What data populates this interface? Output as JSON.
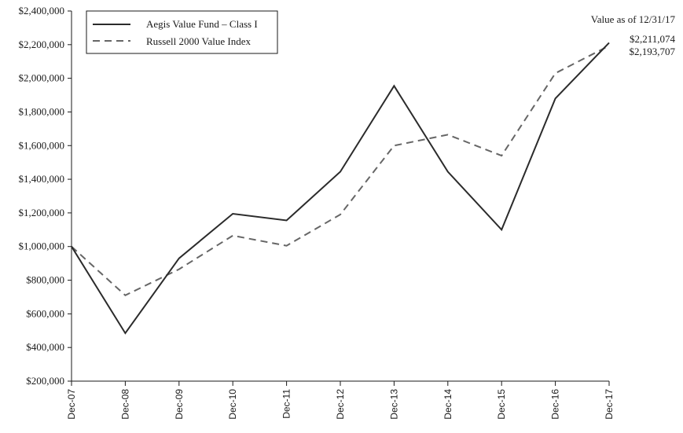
{
  "chart_data": {
    "type": "line",
    "x": [
      "Dec-07",
      "Dec-08",
      "Dec-09",
      "Dec-10",
      "Dec-11",
      "Dec-12",
      "Dec-13",
      "Dec-14",
      "Dec-15",
      "Dec-16",
      "Dec-17"
    ],
    "series": [
      {
        "name": "Aegis Value Fund – Class I",
        "color": "#2b2b2b",
        "dash": "solid",
        "values": [
          1000000,
          485000,
          930000,
          1195000,
          1155000,
          1445000,
          1955000,
          1445000,
          1100000,
          1880000,
          2211074
        ]
      },
      {
        "name": "Russell 2000 Value Index",
        "color": "#666666",
        "dash": "dashed",
        "values": [
          1000000,
          710000,
          865000,
          1065000,
          1005000,
          1190000,
          1600000,
          1665000,
          1540000,
          2030000,
          2193707
        ]
      }
    ],
    "yticks": [
      "$200,000",
      "$400,000",
      "$600,000",
      "$800,000",
      "$1,000,000",
      "$1,200,000",
      "$1,400,000",
      "$1,600,000",
      "$1,800,000",
      "$2,000,000",
      "$2,200,000",
      "$2,400,000"
    ],
    "ylim": [
      200000,
      2400000
    ],
    "title": "",
    "xlabel": "",
    "ylabel": "",
    "grid": false,
    "legend_position": "top-left",
    "annotation": {
      "heading": "Value as of 12/31/17",
      "values": [
        "$2,211,074",
        "$2,193,707"
      ]
    }
  }
}
